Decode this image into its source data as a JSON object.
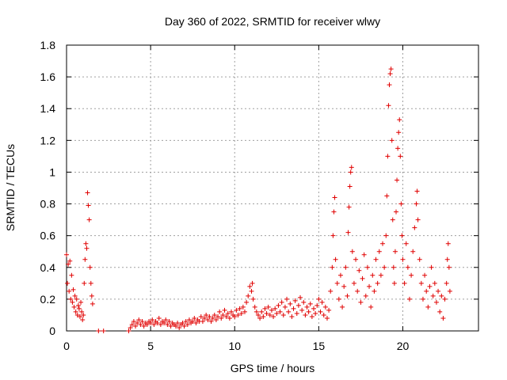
{
  "chart_data": {
    "type": "scatter",
    "title": "Day 360 of 2022, SRMTID for receiver wlwy",
    "xlabel": "GPS time / hours",
    "ylabel": "SRMTID / TECUs",
    "xlim": [
      0,
      24.5
    ],
    "ylim": [
      0,
      1.8
    ],
    "x_ticks": [
      0,
      5,
      10,
      15,
      20
    ],
    "y_ticks": [
      0,
      0.2,
      0.4,
      0.6,
      0.8,
      1,
      1.2,
      1.4,
      1.6,
      1.8
    ],
    "x_tick_labels": [
      "0",
      "5",
      "10",
      "15",
      "20"
    ],
    "y_tick_labels": [
      "0",
      "0.2",
      "0.4",
      "0.6",
      "0.8",
      "1",
      "1.2",
      "1.4",
      "1.6",
      "1.8"
    ],
    "grid": true,
    "marker": "+",
    "series": [
      {
        "name": "wlwy",
        "color": "#e00000",
        "points": [
          [
            0.0,
            0.48
          ],
          [
            0.05,
            0.3
          ],
          [
            0.1,
            0.42
          ],
          [
            0.15,
            0.25
          ],
          [
            0.2,
            0.44
          ],
          [
            0.25,
            0.2
          ],
          [
            0.3,
            0.35
          ],
          [
            0.35,
            0.18
          ],
          [
            0.4,
            0.26
          ],
          [
            0.45,
            0.15
          ],
          [
            0.5,
            0.22
          ],
          [
            0.55,
            0.12
          ],
          [
            0.6,
            0.2
          ],
          [
            0.65,
            0.1
          ],
          [
            0.7,
            0.16
          ],
          [
            0.75,
            0.14
          ],
          [
            0.8,
            0.09
          ],
          [
            0.85,
            0.18
          ],
          [
            0.9,
            0.12
          ],
          [
            0.95,
            0.07
          ],
          [
            1.0,
            0.1
          ],
          [
            1.05,
            0.3
          ],
          [
            1.1,
            0.45
          ],
          [
            1.15,
            0.55
          ],
          [
            1.2,
            0.52
          ],
          [
            1.25,
            0.87
          ],
          [
            1.3,
            0.79
          ],
          [
            1.35,
            0.7
          ],
          [
            1.4,
            0.4
          ],
          [
            1.45,
            0.3
          ],
          [
            1.5,
            0.22
          ],
          [
            1.55,
            0.17
          ],
          [
            1.9,
            0.0
          ],
          [
            2.2,
            0.0
          ],
          [
            3.7,
            0.0
          ],
          [
            3.8,
            0.02
          ],
          [
            3.9,
            0.04
          ],
          [
            4.0,
            0.06
          ],
          [
            4.1,
            0.03
          ],
          [
            4.2,
            0.05
          ],
          [
            4.3,
            0.07
          ],
          [
            4.4,
            0.04
          ],
          [
            4.5,
            0.06
          ],
          [
            4.6,
            0.03
          ],
          [
            4.7,
            0.05
          ],
          [
            4.8,
            0.04
          ],
          [
            4.9,
            0.06
          ],
          [
            5.0,
            0.05
          ],
          [
            5.1,
            0.07
          ],
          [
            5.2,
            0.04
          ],
          [
            5.3,
            0.06
          ],
          [
            5.4,
            0.05
          ],
          [
            5.5,
            0.08
          ],
          [
            5.6,
            0.04
          ],
          [
            5.7,
            0.06
          ],
          [
            5.8,
            0.05
          ],
          [
            5.9,
            0.07
          ],
          [
            6.0,
            0.04
          ],
          [
            6.1,
            0.06
          ],
          [
            6.2,
            0.03
          ],
          [
            6.3,
            0.05
          ],
          [
            6.4,
            0.04
          ],
          [
            6.5,
            0.03
          ],
          [
            6.6,
            0.05
          ],
          [
            6.7,
            0.02
          ],
          [
            6.8,
            0.04
          ],
          [
            6.9,
            0.05
          ],
          [
            7.0,
            0.03
          ],
          [
            7.1,
            0.06
          ],
          [
            7.2,
            0.04
          ],
          [
            7.3,
            0.07
          ],
          [
            7.4,
            0.05
          ],
          [
            7.5,
            0.06
          ],
          [
            7.6,
            0.08
          ],
          [
            7.7,
            0.05
          ],
          [
            7.8,
            0.07
          ],
          [
            7.9,
            0.06
          ],
          [
            8.0,
            0.09
          ],
          [
            8.1,
            0.06
          ],
          [
            8.2,
            0.08
          ],
          [
            8.3,
            0.1
          ],
          [
            8.4,
            0.07
          ],
          [
            8.5,
            0.09
          ],
          [
            8.6,
            0.06
          ],
          [
            8.7,
            0.08
          ],
          [
            8.8,
            0.1
          ],
          [
            8.9,
            0.07
          ],
          [
            9.0,
            0.09
          ],
          [
            9.1,
            0.12
          ],
          [
            9.2,
            0.08
          ],
          [
            9.3,
            0.1
          ],
          [
            9.4,
            0.13
          ],
          [
            9.5,
            0.09
          ],
          [
            9.6,
            0.11
          ],
          [
            9.7,
            0.08
          ],
          [
            9.8,
            0.12
          ],
          [
            9.9,
            0.1
          ],
          [
            10.0,
            0.09
          ],
          [
            10.1,
            0.13
          ],
          [
            10.2,
            0.1
          ],
          [
            10.3,
            0.14
          ],
          [
            10.4,
            0.11
          ],
          [
            10.5,
            0.15
          ],
          [
            10.6,
            0.12
          ],
          [
            10.7,
            0.18
          ],
          [
            10.8,
            0.22
          ],
          [
            10.9,
            0.28
          ],
          [
            11.0,
            0.25
          ],
          [
            11.05,
            0.3
          ],
          [
            11.1,
            0.2
          ],
          [
            11.2,
            0.15
          ],
          [
            11.3,
            0.12
          ],
          [
            11.4,
            0.1
          ],
          [
            11.5,
            0.08
          ],
          [
            11.6,
            0.12
          ],
          [
            11.7,
            0.09
          ],
          [
            11.8,
            0.14
          ],
          [
            11.9,
            0.11
          ],
          [
            12.0,
            0.15
          ],
          [
            12.1,
            0.1
          ],
          [
            12.2,
            0.13
          ],
          [
            12.3,
            0.09
          ],
          [
            12.4,
            0.14
          ],
          [
            12.5,
            0.11
          ],
          [
            12.6,
            0.16
          ],
          [
            12.7,
            0.12
          ],
          [
            12.8,
            0.18
          ],
          [
            12.9,
            0.1
          ],
          [
            13.0,
            0.15
          ],
          [
            13.1,
            0.2
          ],
          [
            13.2,
            0.12
          ],
          [
            13.3,
            0.17
          ],
          [
            13.4,
            0.09
          ],
          [
            13.5,
            0.14
          ],
          [
            13.6,
            0.19
          ],
          [
            13.7,
            0.11
          ],
          [
            13.8,
            0.16
          ],
          [
            13.9,
            0.21
          ],
          [
            14.0,
            0.13
          ],
          [
            14.1,
            0.18
          ],
          [
            14.2,
            0.1
          ],
          [
            14.3,
            0.15
          ],
          [
            14.4,
            0.12
          ],
          [
            14.5,
            0.17
          ],
          [
            14.6,
            0.09
          ],
          [
            14.7,
            0.14
          ],
          [
            14.8,
            0.11
          ],
          [
            14.9,
            0.16
          ],
          [
            15.0,
            0.2
          ],
          [
            15.1,
            0.12
          ],
          [
            15.2,
            0.18
          ],
          [
            15.3,
            0.1
          ],
          [
            15.4,
            0.15
          ],
          [
            15.5,
            0.08
          ],
          [
            15.6,
            0.13
          ],
          [
            15.7,
            0.25
          ],
          [
            15.8,
            0.4
          ],
          [
            15.85,
            0.6
          ],
          [
            15.9,
            0.75
          ],
          [
            15.95,
            0.84
          ],
          [
            16.0,
            0.45
          ],
          [
            16.1,
            0.3
          ],
          [
            16.2,
            0.2
          ],
          [
            16.3,
            0.35
          ],
          [
            16.4,
            0.15
          ],
          [
            16.5,
            0.28
          ],
          [
            16.6,
            0.4
          ],
          [
            16.7,
            0.22
          ],
          [
            16.75,
            0.62
          ],
          [
            16.8,
            0.78
          ],
          [
            16.85,
            0.91
          ],
          [
            16.9,
            1.0
          ],
          [
            16.95,
            1.03
          ],
          [
            17.0,
            0.5
          ],
          [
            17.1,
            0.3
          ],
          [
            17.2,
            0.45
          ],
          [
            17.3,
            0.25
          ],
          [
            17.4,
            0.38
          ],
          [
            17.5,
            0.18
          ],
          [
            17.6,
            0.33
          ],
          [
            17.7,
            0.48
          ],
          [
            17.8,
            0.22
          ],
          [
            17.9,
            0.4
          ],
          [
            18.0,
            0.28
          ],
          [
            18.1,
            0.15
          ],
          [
            18.2,
            0.35
          ],
          [
            18.3,
            0.25
          ],
          [
            18.4,
            0.45
          ],
          [
            18.5,
            0.3
          ],
          [
            18.6,
            0.5
          ],
          [
            18.7,
            0.35
          ],
          [
            18.8,
            0.55
          ],
          [
            18.9,
            0.4
          ],
          [
            19.0,
            0.6
          ],
          [
            19.05,
            0.85
          ],
          [
            19.1,
            1.1
          ],
          [
            19.15,
            1.42
          ],
          [
            19.2,
            1.55
          ],
          [
            19.25,
            1.62
          ],
          [
            19.3,
            1.65
          ],
          [
            19.35,
            1.2
          ],
          [
            19.4,
            0.7
          ],
          [
            19.45,
            0.4
          ],
          [
            19.5,
            0.3
          ],
          [
            19.55,
            0.5
          ],
          [
            19.6,
            0.75
          ],
          [
            19.65,
            0.95
          ],
          [
            19.7,
            1.15
          ],
          [
            19.75,
            1.25
          ],
          [
            19.8,
            1.33
          ],
          [
            19.85,
            1.1
          ],
          [
            19.9,
            0.8
          ],
          [
            19.95,
            0.6
          ],
          [
            20.0,
            0.45
          ],
          [
            20.1,
            0.3
          ],
          [
            20.2,
            0.55
          ],
          [
            20.3,
            0.4
          ],
          [
            20.4,
            0.2
          ],
          [
            20.5,
            0.35
          ],
          [
            20.6,
            0.5
          ],
          [
            20.7,
            0.65
          ],
          [
            20.8,
            0.8
          ],
          [
            20.85,
            0.88
          ],
          [
            20.9,
            0.7
          ],
          [
            21.0,
            0.45
          ],
          [
            21.1,
            0.3
          ],
          [
            21.2,
            0.2
          ],
          [
            21.3,
            0.35
          ],
          [
            21.4,
            0.25
          ],
          [
            21.5,
            0.15
          ],
          [
            21.6,
            0.28
          ],
          [
            21.7,
            0.4
          ],
          [
            21.8,
            0.22
          ],
          [
            21.9,
            0.3
          ],
          [
            22.0,
            0.18
          ],
          [
            22.1,
            0.25
          ],
          [
            22.2,
            0.12
          ],
          [
            22.3,
            0.22
          ],
          [
            22.4,
            0.08
          ],
          [
            22.5,
            0.2
          ],
          [
            22.6,
            0.3
          ],
          [
            22.65,
            0.45
          ],
          [
            22.7,
            0.55
          ],
          [
            22.75,
            0.4
          ],
          [
            22.8,
            0.25
          ]
        ]
      }
    ]
  }
}
